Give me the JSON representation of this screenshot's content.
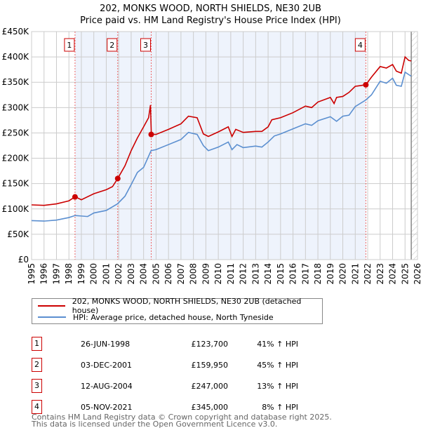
{
  "title": "202, MONKS WOOD, NORTH SHIELDS, NE30 2UB",
  "subtitle": "Price paid vs. HM Land Registry's House Price Index (HPI)",
  "legend": {
    "red": "202, MONKS WOOD, NORTH SHIELDS, NE30 2UB (detached house)",
    "blue": "HPI: Average price, detached house, North Tyneside"
  },
  "sales": [
    {
      "n": "1",
      "date": "26-JUN-1998",
      "price": "£123,700",
      "hpi": "41% ↑ HPI"
    },
    {
      "n": "2",
      "date": "03-DEC-2001",
      "price": "£159,950",
      "hpi": "45% ↑ HPI"
    },
    {
      "n": "3",
      "date": "12-AUG-2004",
      "price": "£247,000",
      "hpi": "13% ↑ HPI"
    },
    {
      "n": "4",
      "date": "05-NOV-2021",
      "price": "£345,000",
      "hpi": "8% ↑ HPI"
    }
  ],
  "footer": [
    "Contains HM Land Registry data © Crown copyright and database right 2025.",
    "This data is licensed under the Open Government Licence v3.0."
  ],
  "chart_data": {
    "type": "line",
    "xlim": [
      1995,
      2026
    ],
    "ylim": [
      0,
      450000
    ],
    "yticks": [
      0,
      50000,
      100000,
      150000,
      200000,
      250000,
      300000,
      350000,
      400000,
      450000
    ],
    "ytick_labels": [
      "£0",
      "£50K",
      "£100K",
      "£150K",
      "£200K",
      "£250K",
      "£300K",
      "£350K",
      "£400K",
      "£450K"
    ],
    "xticks": [
      1995,
      1996,
      1997,
      1998,
      1999,
      2000,
      2001,
      2002,
      2003,
      2004,
      2005,
      2006,
      2007,
      2008,
      2009,
      2010,
      2011,
      2012,
      2013,
      2014,
      2015,
      2016,
      2017,
      2018,
      2019,
      2020,
      2021,
      2022,
      2023,
      2024,
      2025,
      2026
    ],
    "colors": {
      "red": "#cc0000",
      "blue": "#5b8fd0",
      "shade": "#eef3fc"
    },
    "sale_points": [
      {
        "x": 1998.49,
        "y": 123700
      },
      {
        "x": 2001.92,
        "y": 159950
      },
      {
        "x": 2004.61,
        "y": 247000
      },
      {
        "x": 2021.85,
        "y": 345000
      }
    ],
    "forecast_from": 2025.5,
    "series": [
      {
        "name": "red",
        "x": [
          1995,
          1996,
          1997,
          1998,
          1998.5,
          1999,
          2000,
          2001,
          2001.5,
          2001.92,
          2002.5,
          2003,
          2003.5,
          2004,
          2004.4,
          2004.55,
          2004.62,
          2005,
          2006,
          2007,
          2007.6,
          2008.3,
          2008.8,
          2009.2,
          2010,
          2010.8,
          2011.1,
          2011.4,
          2012,
          2013,
          2013.5,
          2014,
          2014.3,
          2015,
          2016,
          2017,
          2017.5,
          2018,
          2019,
          2019.3,
          2019.5,
          2020,
          2020.5,
          2021,
          2021.85,
          2022.3,
          2023,
          2023.5,
          2024,
          2024.3,
          2024.7,
          2025,
          2025.3,
          2025.5
        ],
        "y": [
          108,
          107,
          110,
          116,
          124,
          118,
          130,
          138,
          144,
          160,
          185,
          215,
          240,
          262,
          280,
          305,
          247,
          247,
          257,
          268,
          283,
          280,
          248,
          243,
          252,
          262,
          243,
          257,
          251,
          253,
          253,
          262,
          276,
          280,
          290,
          303,
          300,
          311,
          320,
          308,
          320,
          322,
          330,
          342,
          345,
          360,
          381,
          378,
          385,
          372,
          368,
          400,
          393,
          392
        ]
      },
      {
        "name": "blue",
        "x": [
          1995,
          1996,
          1997,
          1998,
          1998.5,
          1999,
          1999.5,
          2000,
          2001,
          2001.9,
          2002.5,
          2003,
          2003.5,
          2004,
          2004.6,
          2005,
          2006,
          2007,
          2007.6,
          2008.3,
          2008.8,
          2009.2,
          2010,
          2010.8,
          2011.1,
          2011.5,
          2012,
          2013,
          2013.5,
          2014,
          2014.5,
          2015,
          2016,
          2017,
          2017.5,
          2018,
          2019,
          2019.5,
          2020,
          2020.5,
          2021,
          2021.85,
          2022.3,
          2023,
          2023.5,
          2024,
          2024.3,
          2024.7,
          2025,
          2025.3,
          2025.5
        ],
        "y": [
          77,
          76,
          78,
          83,
          87,
          86,
          85,
          92,
          97,
          110,
          125,
          148,
          172,
          182,
          215,
          217,
          227,
          237,
          251,
          247,
          225,
          215,
          222,
          232,
          217,
          227,
          221,
          224,
          222,
          232,
          244,
          248,
          258,
          268,
          265,
          274,
          282,
          273,
          283,
          285,
          302,
          315,
          325,
          352,
          348,
          358,
          344,
          342,
          370,
          365,
          362
        ]
      }
    ]
  }
}
